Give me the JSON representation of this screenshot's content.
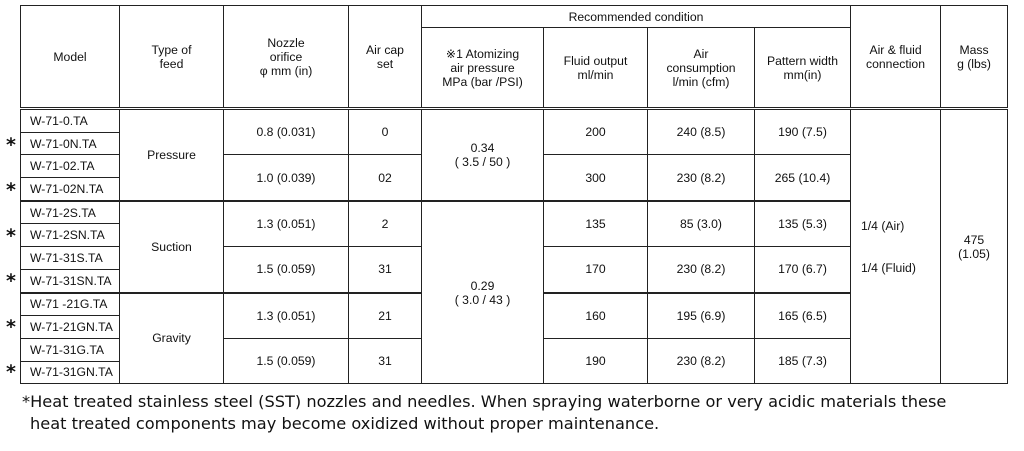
{
  "headers": {
    "model": "Model",
    "type_of_feed": [
      "Type of",
      "feed"
    ],
    "nozzle_orifice": [
      "Nozzle",
      "orifice",
      "φ mm (in)"
    ],
    "air_cap_set": [
      "Air cap",
      "set"
    ],
    "recommended_condition": "Recommended condition",
    "atomizing": [
      "※1 Atomizing",
      "air pressure",
      "MPa (bar /PSI)"
    ],
    "fluid_output": [
      "Fluid output",
      "ml/min"
    ],
    "air_consumption": [
      "Air",
      "consumption",
      "l/min (cfm)"
    ],
    "pattern_width": [
      "Pattern width",
      "mm(in)"
    ],
    "connection": [
      "Air & fluid",
      "connection"
    ],
    "mass": [
      "Mass",
      "g (lbs)"
    ]
  },
  "models": [
    {
      "name": "W-71-0.TA",
      "star": false
    },
    {
      "name": "W-71-0N.TA",
      "star": true
    },
    {
      "name": "W-71-02.TA",
      "star": false
    },
    {
      "name": "W-71-02N.TA",
      "star": true
    },
    {
      "name": "W-71-2S.TA",
      "star": false
    },
    {
      "name": "W-71-2SN.TA",
      "star": true
    },
    {
      "name": "W-71-31S.TA",
      "star": false
    },
    {
      "name": "W-71-31SN.TA",
      "star": true
    },
    {
      "name": "W-71 -21G.TA",
      "star": false
    },
    {
      "name": "W-71-21GN.TA",
      "star": true
    },
    {
      "name": "W-71-31G.TA",
      "star": false
    },
    {
      "name": "W-71-31GN.TA",
      "star": true
    }
  ],
  "star_symbol": "*",
  "feed_types": [
    "Pressure",
    "Suction",
    "Gravity"
  ],
  "groups": [
    {
      "orifice": "0.8 (0.031)",
      "air_cap": "0",
      "fluid_output": "200",
      "air_consumption": "240 (8.5)",
      "pattern_width": "190 (7.5)"
    },
    {
      "orifice": "1.0 (0.039)",
      "air_cap": "02",
      "fluid_output": "300",
      "air_consumption": "230 (8.2)",
      "pattern_width": "265 (10.4)"
    },
    {
      "orifice": "1.3 (0.051)",
      "air_cap": "2",
      "fluid_output": "135",
      "air_consumption": "85 (3.0)",
      "pattern_width": "135 (5.3)"
    },
    {
      "orifice": "1.5 (0.059)",
      "air_cap": "31",
      "fluid_output": "170",
      "air_consumption": "230 (8.2)",
      "pattern_width": "170 (6.7)"
    },
    {
      "orifice": "1.3 (0.051)",
      "air_cap": "21",
      "fluid_output": "160",
      "air_consumption": "195 (6.9)",
      "pattern_width": "165 (6.5)"
    },
    {
      "orifice": "1.5 (0.059)",
      "air_cap": "31",
      "fluid_output": "190",
      "air_consumption": "230 (8.2)",
      "pattern_width": "185 (7.3)"
    }
  ],
  "atomizing_values": [
    {
      "mpa": "0.34",
      "bar_psi": "( 3.5 / 50 )"
    },
    {
      "mpa": "0.29",
      "bar_psi": "( 3.0 / 43 )"
    }
  ],
  "connection": {
    "air": "1/4 (Air)",
    "fluid": "1/4 (Fluid)"
  },
  "mass": {
    "g": "475",
    "lbs": "(1.05)"
  },
  "footnote": {
    "line1": "*Heat treated stainless steel (SST) nozzles and needles. When spraying waterborne or very acidic materials these",
    "line2": "heat treated components may become oxidized without proper maintenance."
  }
}
